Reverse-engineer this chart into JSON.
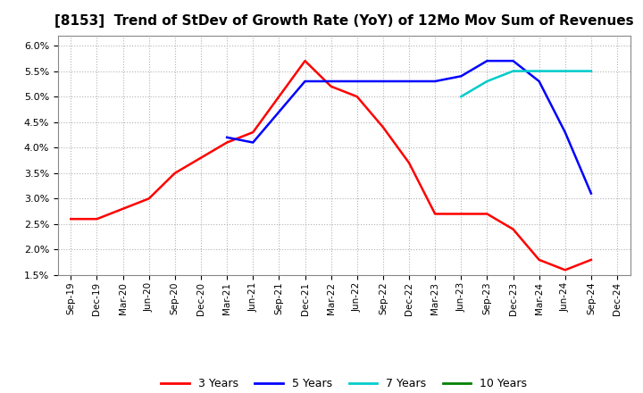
{
  "title": "[8153]  Trend of StDev of Growth Rate (YoY) of 12Mo Mov Sum of Revenues",
  "title_fontsize": 11,
  "ylim": [
    0.015,
    0.062
  ],
  "yticks": [
    0.015,
    0.02,
    0.025,
    0.03,
    0.035,
    0.04,
    0.045,
    0.05,
    0.055,
    0.06
  ],
  "x_labels": [
    "Sep-19",
    "Dec-19",
    "Mar-20",
    "Jun-20",
    "Sep-20",
    "Dec-20",
    "Mar-21",
    "Jun-21",
    "Sep-21",
    "Dec-21",
    "Mar-22",
    "Jun-22",
    "Sep-22",
    "Dec-22",
    "Mar-23",
    "Jun-23",
    "Sep-23",
    "Dec-23",
    "Mar-24",
    "Jun-24",
    "Sep-24",
    "Dec-24"
  ],
  "y3": [
    0.026,
    0.026,
    0.028,
    0.03,
    0.035,
    0.038,
    0.041,
    0.043,
    0.05,
    0.057,
    0.052,
    0.05,
    0.044,
    0.037,
    0.027,
    0.027,
    0.027,
    0.024,
    0.018,
    0.016,
    0.018,
    null
  ],
  "y5": [
    null,
    null,
    null,
    null,
    null,
    null,
    0.042,
    0.041,
    0.047,
    0.053,
    0.053,
    0.053,
    0.053,
    0.053,
    0.053,
    0.054,
    0.057,
    0.057,
    0.053,
    0.043,
    0.031,
    null
  ],
  "y7": [
    null,
    null,
    null,
    null,
    null,
    null,
    null,
    null,
    null,
    null,
    null,
    null,
    null,
    null,
    null,
    0.05,
    0.053,
    0.055,
    0.055,
    0.055,
    0.055,
    null
  ],
  "y10": [
    null,
    null,
    null,
    null,
    null,
    null,
    null,
    null,
    null,
    null,
    null,
    null,
    null,
    null,
    null,
    null,
    null,
    null,
    null,
    null,
    null,
    null
  ],
  "color_3y": "#FF0000",
  "color_5y": "#0000FF",
  "color_7y": "#00CCCC",
  "color_10y": "#008000",
  "legend_labels": [
    "3 Years",
    "5 Years",
    "7 Years",
    "10 Years"
  ],
  "legend_colors": [
    "#FF0000",
    "#0000FF",
    "#00CCCC",
    "#008000"
  ],
  "background_color": "#FFFFFF",
  "grid_color": "#AAAAAA",
  "grid_style": ":"
}
